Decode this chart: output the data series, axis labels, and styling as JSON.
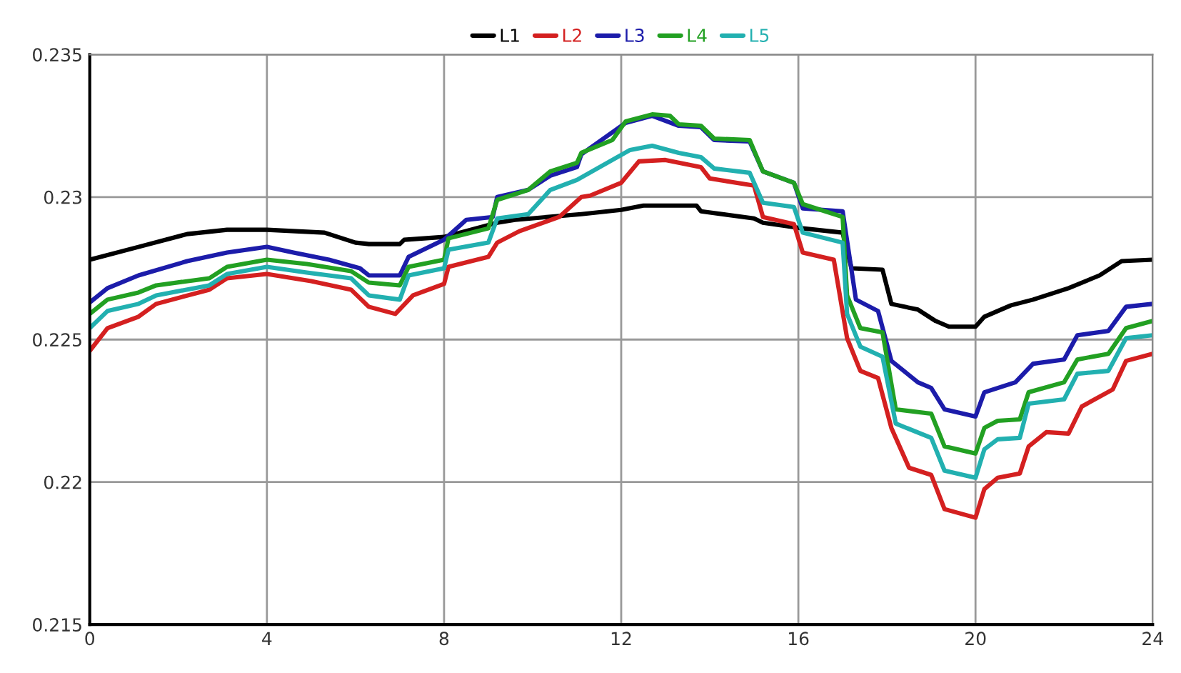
{
  "chart_data": {
    "type": "line",
    "xlim": [
      0,
      24
    ],
    "ylim": [
      0.215,
      0.235
    ],
    "xticks": [
      0,
      4,
      8,
      12,
      16,
      20,
      24
    ],
    "yticks": [
      0.215,
      0.22,
      0.225,
      0.23,
      0.235
    ],
    "grid": true,
    "legend": "top",
    "line_style": "solid",
    "marker": "none",
    "series": [
      {
        "name": "L1",
        "color": "#000000",
        "x": [
          0,
          1.1,
          2.2,
          3.1,
          4,
          5.3,
          6.0,
          6.3,
          7.0,
          7.1,
          8,
          9.2,
          9.6,
          11.1,
          12,
          12.5,
          13.7,
          13.8,
          15.0,
          15.2,
          16.1,
          17.0,
          17.2,
          17.9,
          18.1,
          18.7,
          19.1,
          19.4,
          20,
          20.2,
          20.8,
          21.3,
          22.1,
          22.8,
          23.3,
          24
        ],
        "values": [
          0.2278,
          0.22825,
          0.2287,
          0.22885,
          0.22885,
          0.22875,
          0.2284,
          0.22835,
          0.22835,
          0.2285,
          0.2286,
          0.2291,
          0.2292,
          0.2294,
          0.22955,
          0.2297,
          0.2297,
          0.2295,
          0.22925,
          0.2291,
          0.2289,
          0.22875,
          0.2275,
          0.22745,
          0.22625,
          0.22605,
          0.22565,
          0.22545,
          0.22545,
          0.2258,
          0.2262,
          0.2264,
          0.2268,
          0.22725,
          0.22775,
          0.2278
        ]
      },
      {
        "name": "L2",
        "color": "#d42020",
        "x": [
          0,
          0.4,
          1.1,
          1.5,
          2.7,
          3.1,
          4,
          5,
          5.9,
          6.3,
          6.9,
          7.3,
          8,
          8.1,
          9.0,
          9.2,
          9.7,
          10.6,
          11.1,
          11.3,
          12,
          12.4,
          13.0,
          13.8,
          14.0,
          15,
          15.2,
          15.9,
          16.1,
          16.8,
          17.1,
          17.4,
          17.8,
          18.1,
          18.5,
          19.0,
          19.3,
          20,
          20.2,
          20.5,
          21.0,
          21.2,
          21.6,
          22.1,
          22.4,
          23.1,
          23.4,
          24
        ],
        "values": [
          0.2246,
          0.2254,
          0.2258,
          0.22625,
          0.22675,
          0.22715,
          0.2273,
          0.22705,
          0.22675,
          0.22615,
          0.2259,
          0.22655,
          0.22695,
          0.22755,
          0.2279,
          0.2284,
          0.2288,
          0.2293,
          0.23,
          0.23005,
          0.2305,
          0.23125,
          0.2313,
          0.23105,
          0.23065,
          0.2304,
          0.2293,
          0.22905,
          0.22805,
          0.2278,
          0.22505,
          0.2239,
          0.22365,
          0.2219,
          0.2205,
          0.22025,
          0.21905,
          0.21875,
          0.21975,
          0.22015,
          0.2203,
          0.22125,
          0.22175,
          0.2217,
          0.22265,
          0.22325,
          0.22425,
          0.2245
        ]
      },
      {
        "name": "L3",
        "color": "#1c1caa",
        "x": [
          0,
          0.4,
          1.1,
          2.2,
          3.1,
          4,
          4.6,
          5.4,
          6.1,
          6.3,
          7.0,
          7.2,
          7.6,
          8,
          8.5,
          9.1,
          9.2,
          9.9,
          10.4,
          11,
          11.1,
          12.1,
          12.7,
          13.3,
          13.8,
          14.1,
          14.9,
          15.2,
          15.9,
          16.1,
          17.0,
          17.3,
          17.8,
          18.1,
          18.7,
          19,
          19.3,
          20,
          20.2,
          20.9,
          21.3,
          22,
          22.3,
          23,
          23.4,
          24
        ],
        "values": [
          0.2263,
          0.2268,
          0.22725,
          0.22775,
          0.22805,
          0.22825,
          0.22805,
          0.2278,
          0.2275,
          0.22725,
          0.22725,
          0.2279,
          0.2282,
          0.2285,
          0.2292,
          0.2293,
          0.23,
          0.23025,
          0.23075,
          0.23105,
          0.2315,
          0.2326,
          0.23285,
          0.2325,
          0.23245,
          0.232,
          0.23195,
          0.2309,
          0.2305,
          0.2296,
          0.2295,
          0.2264,
          0.226,
          0.22425,
          0.2235,
          0.2233,
          0.22255,
          0.2223,
          0.22315,
          0.2235,
          0.22415,
          0.2243,
          0.22515,
          0.2253,
          0.22615,
          0.22625
        ]
      },
      {
        "name": "L4",
        "color": "#22a022",
        "x": [
          0,
          0.4,
          1.1,
          1.5,
          2.7,
          3.1,
          4,
          4.9,
          5.9,
          6.3,
          7,
          7.2,
          8,
          8.1,
          9,
          9.2,
          9.9,
          10.4,
          11,
          11.1,
          11.8,
          12.1,
          12.7,
          13.1,
          13.3,
          13.8,
          14.1,
          14.9,
          15.2,
          15.9,
          16.1,
          17.0,
          17.1,
          17.4,
          17.9,
          18.2,
          19,
          19.3,
          20,
          20.2,
          20.5,
          21,
          21.2,
          22,
          22.3,
          23,
          23.4,
          24
        ],
        "values": [
          0.2259,
          0.2264,
          0.22665,
          0.2269,
          0.22715,
          0.22755,
          0.2278,
          0.22765,
          0.2274,
          0.227,
          0.2269,
          0.22755,
          0.2278,
          0.22855,
          0.2289,
          0.2299,
          0.23025,
          0.2309,
          0.2312,
          0.23155,
          0.232,
          0.23265,
          0.2329,
          0.23285,
          0.23255,
          0.2325,
          0.23205,
          0.232,
          0.2309,
          0.2305,
          0.22975,
          0.2293,
          0.22655,
          0.2254,
          0.22525,
          0.22255,
          0.2224,
          0.22125,
          0.221,
          0.2219,
          0.22215,
          0.2222,
          0.22315,
          0.2235,
          0.2243,
          0.2245,
          0.2254,
          0.22565
        ]
      },
      {
        "name": "L5",
        "color": "#22b0b0",
        "x": [
          0,
          0.4,
          1.1,
          1.5,
          2.7,
          3.1,
          4,
          4.9,
          5.9,
          6.3,
          7,
          7.2,
          8,
          8.1,
          9,
          9.2,
          9.9,
          10.4,
          11,
          12.2,
          12.7,
          13.3,
          13.8,
          14.1,
          14.9,
          15.2,
          15.9,
          16.1,
          17,
          17.1,
          17.4,
          17.9,
          18.2,
          19,
          19.3,
          20,
          20.2,
          20.5,
          21,
          21.2,
          22,
          22.3,
          23,
          23.4,
          24
        ],
        "values": [
          0.2254,
          0.226,
          0.22625,
          0.22655,
          0.2269,
          0.2273,
          0.22755,
          0.22735,
          0.22715,
          0.22655,
          0.2264,
          0.22725,
          0.2275,
          0.22815,
          0.2284,
          0.22925,
          0.2294,
          0.23025,
          0.2306,
          0.23165,
          0.2318,
          0.23155,
          0.2314,
          0.231,
          0.23085,
          0.2298,
          0.22965,
          0.22875,
          0.2284,
          0.2259,
          0.22475,
          0.2244,
          0.22205,
          0.22155,
          0.2204,
          0.22015,
          0.22115,
          0.2215,
          0.22155,
          0.22275,
          0.2229,
          0.2238,
          0.2239,
          0.22505,
          0.22515
        ]
      }
    ]
  }
}
